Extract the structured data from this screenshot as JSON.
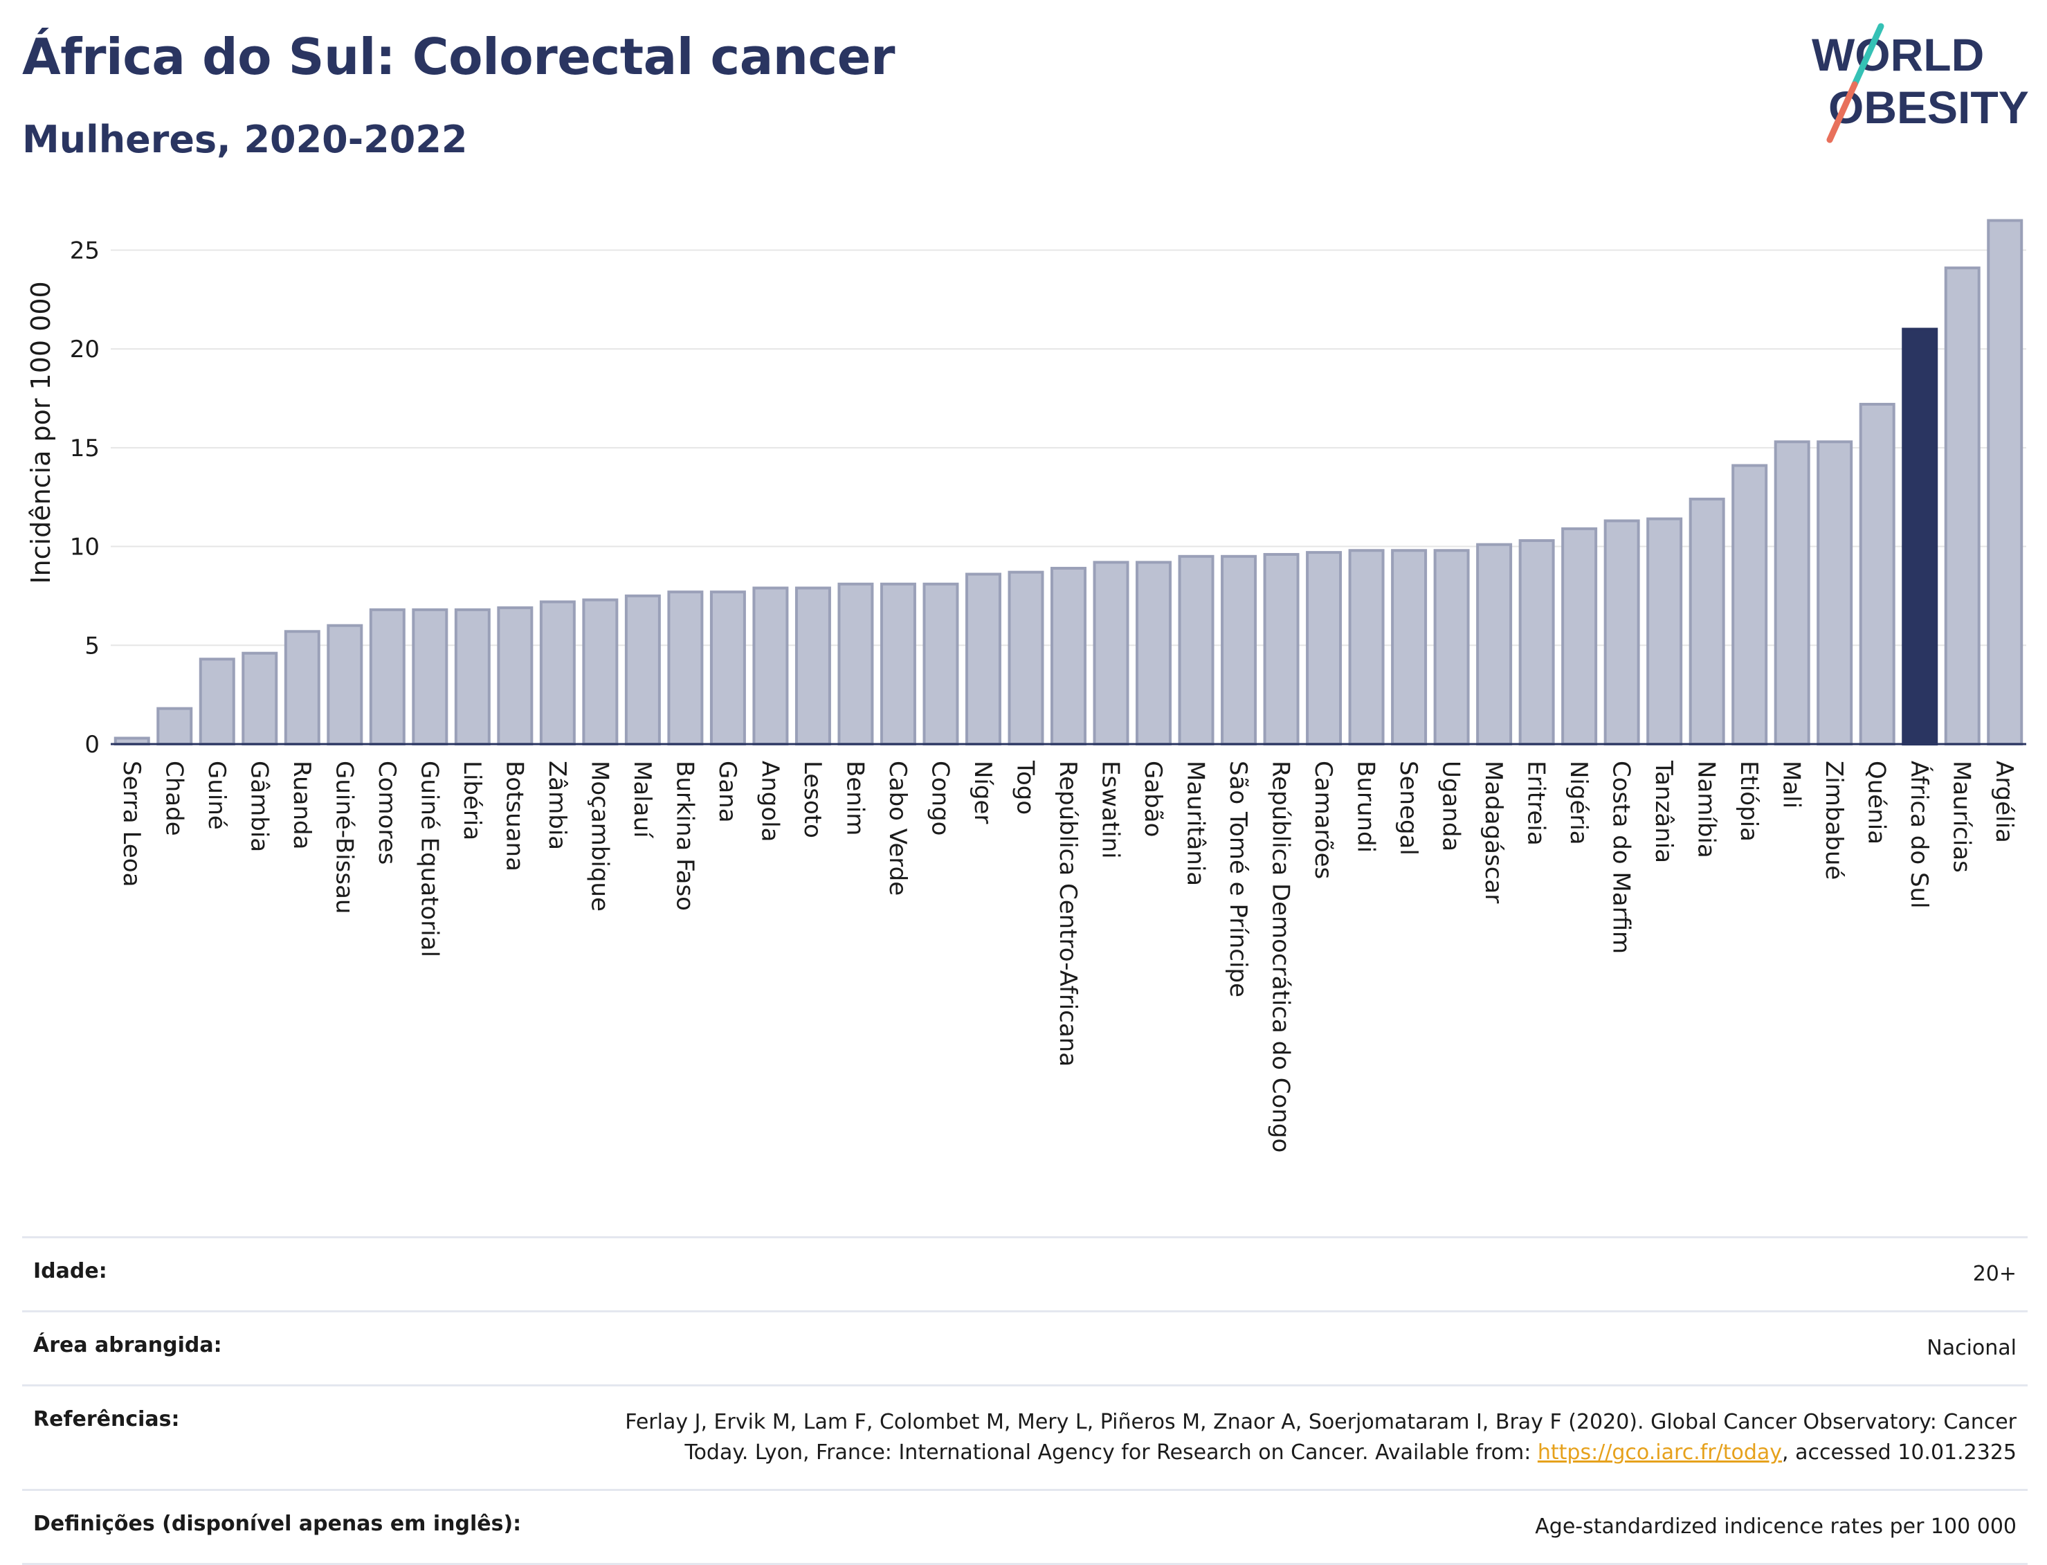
{
  "title": "África do Sul: Colorectal cancer",
  "subtitle": "Mulheres, 2020-2022",
  "logo": {
    "line1": "WORLD",
    "line2": "OBESITY",
    "colors": {
      "text": "#2a3561",
      "slash_top": "#35c1b5",
      "slash_bottom": "#e8705b"
    }
  },
  "colors": {
    "bar": "#bcc1d2",
    "bar_stroke": "#9aa0b8",
    "highlight": "#2a3561",
    "grid": "#e6e6e6",
    "axis": "#2a3561",
    "link": "#e6a11c"
  },
  "chart_data": {
    "type": "bar",
    "ylabel": "Incidência por 100 000",
    "xlabel": "",
    "ylim": [
      0,
      27.5
    ],
    "yticks": [
      0,
      5,
      10,
      15,
      20,
      25
    ],
    "grid": true,
    "highlight": "África do Sul",
    "categories": [
      "Serra Leoa",
      "Chade",
      "Guiné",
      "Gâmbia",
      "Ruanda",
      "Guiné-Bissau",
      "Comores",
      "Guiné Equatorial",
      "Libéria",
      "Botsuana",
      "Zâmbia",
      "Moçambique",
      "Malauí",
      "Burkina Faso",
      "Gana",
      "Angola",
      "Lesoto",
      "Benim",
      "Cabo Verde",
      "Congo",
      "Níger",
      "Togo",
      "República Centro-Africana",
      "Eswatini",
      "Gabão",
      "Mauritânia",
      "São Tomé e Príncipe",
      "República Democrática do Congo",
      "Camarões",
      "Burundi",
      "Senegal",
      "Uganda",
      "Madagáscar",
      "Eritreia",
      "Nigéria",
      "Costa do Marfim",
      "Tanzânia",
      "Namíbia",
      "Etiópia",
      "Mali",
      "Zimbabué",
      "Quénia",
      "África do Sul",
      "Maurícias",
      "Argélia"
    ],
    "values": [
      0.3,
      1.8,
      4.3,
      4.6,
      5.7,
      6.0,
      6.8,
      6.8,
      6.8,
      6.9,
      7.2,
      7.3,
      7.5,
      7.7,
      7.7,
      7.9,
      7.9,
      8.1,
      8.1,
      8.1,
      8.6,
      8.7,
      8.9,
      9.2,
      9.2,
      9.5,
      9.5,
      9.6,
      9.7,
      9.8,
      9.8,
      9.8,
      10.1,
      10.3,
      10.9,
      11.3,
      11.4,
      12.4,
      14.1,
      15.3,
      15.3,
      17.2,
      21.0,
      24.1,
      26.5
    ]
  },
  "info": {
    "age_label": "Idade:",
    "age_value": "20+",
    "area_label": "Área abrangida:",
    "area_value": "Nacional",
    "ref_label": "Referências:",
    "ref_text1": "Ferlay J, Ervik M, Lam F, Colombet M, Mery L, Piñeros M, Znaor A, Soerjomataram I, Bray F (2020). Global Cancer Observatory: Cancer",
    "ref_text2": "Today. Lyon, France: International Agency for Research on Cancer. Available from:",
    "ref_link": "https://gco.iarc.fr/today",
    "ref_text3": ", accessed 10.01.2325",
    "def_label": "Definições (disponível apenas em inglês):",
    "def_value": "Age-standardized indicence rates per 100 000"
  }
}
